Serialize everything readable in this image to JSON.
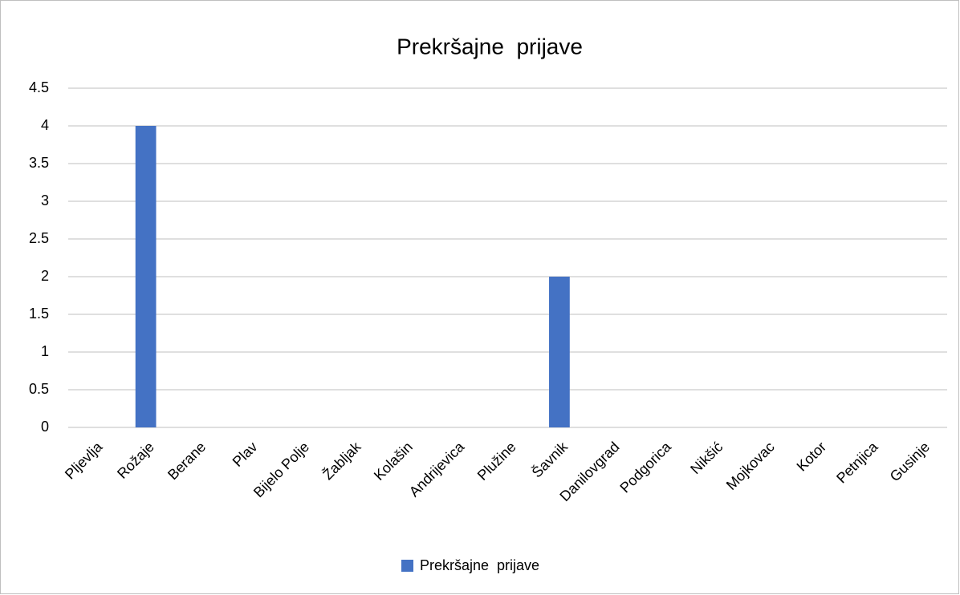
{
  "chart_data": {
    "type": "bar",
    "title": "Prekršajne  prijave",
    "categories": [
      "Pljevlja",
      "Rožaje",
      "Berane",
      "Plav",
      "Bijelo Polje",
      "Žabljak",
      "Kolašin",
      "Andrijevica",
      "Plužine",
      "Šavnik",
      "Danilovgrad",
      "Podgorica",
      "Nikšić",
      "Mojkovac",
      "Kotor",
      "Petnjica",
      "Gusinje"
    ],
    "series": [
      {
        "name": "Prekršajne  prijave",
        "color": "#4472c4",
        "values": [
          0,
          4,
          0,
          0,
          0,
          0,
          0,
          0,
          0,
          2,
          0,
          0,
          0,
          0,
          0,
          0,
          0
        ]
      }
    ],
    "ylim": [
      0,
      4.5
    ],
    "yticks": [
      0,
      0.5,
      1,
      1.5,
      2,
      2.5,
      3,
      3.5,
      4,
      4.5
    ],
    "grid": true,
    "legend": "bottom"
  }
}
